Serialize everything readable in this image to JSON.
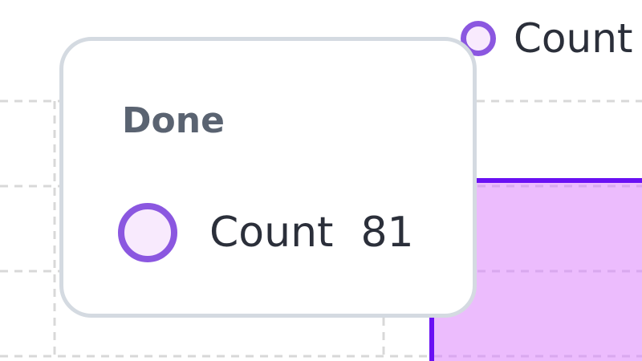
{
  "chart_data": {
    "type": "bar",
    "categories": [
      "Done"
    ],
    "series": [
      {
        "name": "Count",
        "values": [
          81
        ]
      }
    ],
    "legend": "top-center",
    "grid": true,
    "colors": {
      "bar_fill": "#ecbcfd",
      "bar_stroke": "#6a10f3",
      "grid": "#d8d8d8",
      "marker_stroke": "#8b57e0",
      "marker_fill": "#f8eafd"
    }
  },
  "legend": {
    "label": "Count"
  },
  "tooltip": {
    "title": "Done",
    "series_label": "Count",
    "value": "81"
  }
}
